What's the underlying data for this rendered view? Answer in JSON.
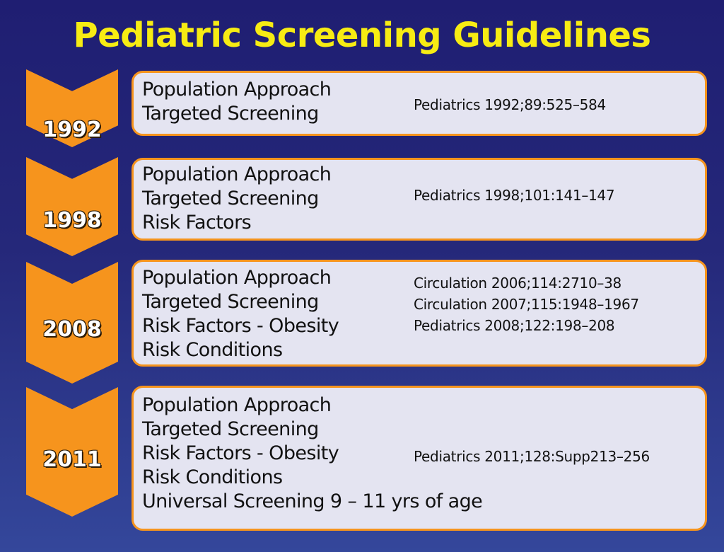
{
  "title": "Pediatric Screening Guidelines",
  "colors": {
    "title": "#f7ec13",
    "chevron": "#f6941d",
    "box_fill": "#e4e4f1",
    "box_border": "#f6941d",
    "background_top": "#1f1e72",
    "background_bottom": "#34479b"
  },
  "entries": [
    {
      "year": "1992",
      "items": [
        "Population Approach",
        "Targeted Screening"
      ],
      "references": [
        "Pediatrics 1992;89:525–584"
      ]
    },
    {
      "year": "1998",
      "items": [
        "Population Approach",
        "Targeted Screening",
        "Risk Factors"
      ],
      "references": [
        "Pediatrics 1998;101:141–147"
      ]
    },
    {
      "year": "2008",
      "items": [
        "Population Approach",
        "Targeted Screening",
        "Risk Factors - Obesity",
        "Risk Conditions"
      ],
      "references": [
        "Circulation 2006;114:2710–38",
        "Circulation 2007;115:1948–1967",
        "Pediatrics 2008;122:198–208"
      ]
    },
    {
      "year": "2011",
      "items": [
        "Population Approach",
        "Targeted Screening",
        "Risk Factors - Obesity",
        "Risk Conditions",
        "Universal Screening  9 – 11 yrs of age"
      ],
      "references": [
        "Pediatrics 2011;128:Supp213–256"
      ]
    }
  ]
}
